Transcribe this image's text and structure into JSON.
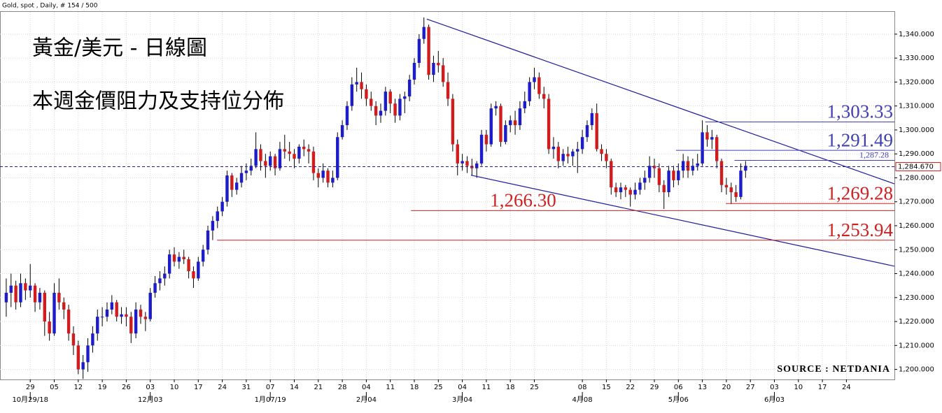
{
  "chart_data": {
    "type": "candlestick",
    "header": "Gold, spot , Daily, # 154 / 500",
    "title": "黃金/美元 - 日線圖",
    "subtitle": "本週金價阻力及支持位分佈",
    "source": "SOURCE : NETDANIA",
    "up_color": "#1c1cc8",
    "down_color": "#d01c1c",
    "grid": true,
    "xlim": [
      -1.3,
      185
    ],
    "ylim": [
      1195.8,
      1349.3
    ],
    "yticks": [
      {
        "value": 1200,
        "label": "1,200.000"
      },
      {
        "value": 1210,
        "label": "1,210.000"
      },
      {
        "value": 1220,
        "label": "1,220.000"
      },
      {
        "value": 1230,
        "label": "1,230.000"
      },
      {
        "value": 1240,
        "label": "1,240.000"
      },
      {
        "value": 1250,
        "label": "1,250.000"
      },
      {
        "value": 1260,
        "label": "1,260.000"
      },
      {
        "value": 1270,
        "label": "1,270.000"
      },
      {
        "value": 1280,
        "label": "1,280.000"
      },
      {
        "value": 1290,
        "label": "1,290.000"
      },
      {
        "value": 1300,
        "label": "1,300.000"
      },
      {
        "value": 1310,
        "label": "1,310.000"
      },
      {
        "value": 1320,
        "label": "1,320.000"
      },
      {
        "value": 1330,
        "label": "1,330.000"
      },
      {
        "value": 1340,
        "label": "1,340.000"
      }
    ],
    "xticks": [
      {
        "value": 5,
        "label": "29"
      },
      {
        "value": 10,
        "label": "05"
      },
      {
        "value": 15,
        "label": "12"
      },
      {
        "value": 20,
        "label": "19"
      },
      {
        "value": 25,
        "label": "26"
      },
      {
        "value": 30,
        "label": "03"
      },
      {
        "value": 35,
        "label": "10"
      },
      {
        "value": 40,
        "label": "17"
      },
      {
        "value": 45,
        "label": "24"
      },
      {
        "value": 50,
        "label": "31"
      },
      {
        "value": 55,
        "label": "07"
      },
      {
        "value": 60,
        "label": "14"
      },
      {
        "value": 65,
        "label": "21"
      },
      {
        "value": 70,
        "label": "28"
      },
      {
        "value": 75,
        "label": "04"
      },
      {
        "value": 80,
        "label": "11"
      },
      {
        "value": 85,
        "label": "18"
      },
      {
        "value": 90,
        "label": "25"
      },
      {
        "value": 95,
        "label": "04"
      },
      {
        "value": 100,
        "label": "11"
      },
      {
        "value": 105,
        "label": "18"
      },
      {
        "value": 110,
        "label": "25"
      },
      {
        "value": 120,
        "label": "08"
      },
      {
        "value": 125,
        "label": "15"
      },
      {
        "value": 130,
        "label": "22"
      },
      {
        "value": 135,
        "label": "29"
      },
      {
        "value": 140,
        "label": "06"
      },
      {
        "value": 145,
        "label": "13"
      },
      {
        "value": 150,
        "label": "20"
      },
      {
        "value": 155,
        "label": "27"
      },
      {
        "value": 160,
        "label": "03"
      },
      {
        "value": 165,
        "label": "10"
      },
      {
        "value": 170,
        "label": "17"
      },
      {
        "value": 175,
        "label": "24"
      }
    ],
    "xticks_major": [
      {
        "value": 5,
        "label": "10月29/18"
      },
      {
        "value": 30,
        "label": "12月03"
      },
      {
        "value": 55,
        "label": "1月07/19"
      },
      {
        "value": 75,
        "label": "2月04"
      },
      {
        "value": 95,
        "label": "3月04"
      },
      {
        "value": 120,
        "label": "4月08"
      },
      {
        "value": 140,
        "label": "5月06"
      },
      {
        "value": 160,
        "label": "6月03"
      }
    ],
    "current_price": {
      "value": 1284.67,
      "label": "1,284.670"
    },
    "trendlines": [
      {
        "color": "#1c1c9c",
        "from": [
          87.6,
          1346.3
        ],
        "to": [
          185,
          1277.5
        ]
      },
      {
        "color": "#1c1c9c",
        "from": [
          96.8,
          1281.1
        ],
        "to": [
          185,
          1243.1
        ]
      }
    ],
    "levels": [
      {
        "value": 1303.33,
        "label": "1,303.33",
        "color": "#4040b0",
        "from": 145.6,
        "size": "big"
      },
      {
        "value": 1291.49,
        "label": "1,291.49",
        "color": "#4040b0",
        "from": 139.5,
        "size": "big"
      },
      {
        "value": 1287.28,
        "label": "1,287.28",
        "color": "#4040b0",
        "from": 151.7,
        "size": "small"
      },
      {
        "value": 1269.28,
        "label": "1,269.28",
        "color": "#d02020",
        "from": 149.9,
        "size": "big"
      },
      {
        "value": 1266.3,
        "label": "1,266.30",
        "color": "#d02020",
        "from": 84.3,
        "size": "left"
      },
      {
        "value": 1253.94,
        "label": "1,253.94",
        "color": "#d02020",
        "from": 43.9,
        "size": "big"
      }
    ],
    "candles": [
      [
        1228,
        1238,
        1222,
        1232
      ],
      [
        1232,
        1240,
        1226,
        1235
      ],
      [
        1235,
        1237,
        1225,
        1228
      ],
      [
        1228,
        1240,
        1226,
        1236
      ],
      [
        1236,
        1238,
        1229,
        1233
      ],
      [
        1233,
        1244,
        1230,
        1235
      ],
      [
        1235,
        1236,
        1224,
        1228
      ],
      [
        1228,
        1234,
        1225,
        1232
      ],
      [
        1232,
        1233,
        1214,
        1220
      ],
      [
        1220,
        1224,
        1212,
        1215
      ],
      [
        1215,
        1236,
        1214,
        1232
      ],
      [
        1232,
        1238,
        1225,
        1228
      ],
      [
        1228,
        1230,
        1221,
        1225
      ],
      [
        1225,
        1227,
        1212,
        1215
      ],
      [
        1215,
        1218,
        1206,
        1210
      ],
      [
        1210,
        1212,
        1198,
        1200
      ],
      [
        1200,
        1206,
        1196,
        1203
      ],
      [
        1203,
        1213,
        1199,
        1210
      ],
      [
        1210,
        1218,
        1207,
        1215
      ],
      [
        1215,
        1225,
        1212,
        1222
      ],
      [
        1222,
        1226,
        1218,
        1222
      ],
      [
        1222,
        1228,
        1220,
        1225
      ],
      [
        1225,
        1231,
        1223,
        1228
      ],
      [
        1228,
        1229,
        1220,
        1222
      ],
      [
        1222,
        1226,
        1219,
        1223
      ],
      [
        1223,
        1226,
        1218,
        1222
      ],
      [
        1222,
        1224,
        1211,
        1215
      ],
      [
        1215,
        1228,
        1213,
        1225
      ],
      [
        1225,
        1227,
        1219,
        1222
      ],
      [
        1222,
        1224,
        1216,
        1221
      ],
      [
        1221,
        1234,
        1220,
        1232
      ],
      [
        1232,
        1239,
        1230,
        1236
      ],
      [
        1236,
        1241,
        1233,
        1238
      ],
      [
        1238,
        1243,
        1235,
        1240
      ],
      [
        1240,
        1250,
        1238,
        1248
      ],
      [
        1248,
        1251,
        1243,
        1245
      ],
      [
        1245,
        1249,
        1242,
        1247
      ],
      [
        1247,
        1250,
        1244,
        1246
      ],
      [
        1246,
        1247,
        1238,
        1241
      ],
      [
        1241,
        1243,
        1234,
        1238
      ],
      [
        1238,
        1247,
        1237,
        1245
      ],
      [
        1245,
        1252,
        1243,
        1250
      ],
      [
        1250,
        1260,
        1248,
        1258
      ],
      [
        1258,
        1264,
        1254,
        1262
      ],
      [
        1262,
        1268,
        1259,
        1266
      ],
      [
        1266,
        1272,
        1264,
        1270
      ],
      [
        1270,
        1283,
        1268,
        1281
      ],
      [
        1281,
        1282,
        1272,
        1275
      ],
      [
        1275,
        1280,
        1273,
        1278
      ],
      [
        1278,
        1285,
        1276,
        1282
      ],
      [
        1282,
        1286,
        1279,
        1283
      ],
      [
        1283,
        1288,
        1281,
        1285
      ],
      [
        1285,
        1299,
        1284,
        1292
      ],
      [
        1292,
        1294,
        1283,
        1287
      ],
      [
        1287,
        1290,
        1280,
        1285
      ],
      [
        1285,
        1291,
        1283,
        1289
      ],
      [
        1289,
        1290,
        1281,
        1284
      ],
      [
        1284,
        1295,
        1283,
        1292
      ],
      [
        1292,
        1298,
        1288,
        1291
      ],
      [
        1291,
        1295,
        1287,
        1290
      ],
      [
        1290,
        1292,
        1284,
        1288
      ],
      [
        1288,
        1294,
        1286,
        1293
      ],
      [
        1293,
        1296,
        1289,
        1292
      ],
      [
        1292,
        1294,
        1286,
        1291
      ],
      [
        1291,
        1293,
        1279,
        1282
      ],
      [
        1282,
        1284,
        1276,
        1280
      ],
      [
        1280,
        1286,
        1278,
        1283
      ],
      [
        1283,
        1284,
        1276,
        1278
      ],
      [
        1278,
        1283,
        1276,
        1280
      ],
      [
        1280,
        1299,
        1279,
        1297
      ],
      [
        1297,
        1304,
        1296,
        1302
      ],
      [
        1302,
        1312,
        1300,
        1310
      ],
      [
        1310,
        1322,
        1308,
        1319
      ],
      [
        1319,
        1326,
        1316,
        1320
      ],
      [
        1320,
        1324,
        1313,
        1317
      ],
      [
        1317,
        1319,
        1310,
        1313
      ],
      [
        1313,
        1316,
        1308,
        1310
      ],
      [
        1310,
        1312,
        1302,
        1306
      ],
      [
        1306,
        1311,
        1303,
        1308
      ],
      [
        1308,
        1318,
        1306,
        1316
      ],
      [
        1316,
        1317,
        1307,
        1311
      ],
      [
        1311,
        1313,
        1303,
        1306
      ],
      [
        1306,
        1315,
        1304,
        1313
      ],
      [
        1313,
        1316,
        1307,
        1314
      ],
      [
        1314,
        1323,
        1312,
        1321
      ],
      [
        1321,
        1330,
        1319,
        1328
      ],
      [
        1328,
        1340,
        1326,
        1338
      ],
      [
        1338,
        1347,
        1336,
        1343
      ],
      [
        1343,
        1344,
        1321,
        1323
      ],
      [
        1323,
        1331,
        1320,
        1328
      ],
      [
        1328,
        1333,
        1324,
        1327
      ],
      [
        1327,
        1330,
        1318,
        1320
      ],
      [
        1320,
        1324,
        1310,
        1313
      ],
      [
        1313,
        1315,
        1291,
        1294
      ],
      [
        1294,
        1296,
        1281,
        1286
      ],
      [
        1286,
        1290,
        1283,
        1287
      ],
      [
        1287,
        1289,
        1282,
        1285
      ],
      [
        1285,
        1288,
        1281,
        1284
      ],
      [
        1284,
        1287,
        1280,
        1286
      ],
      [
        1286,
        1300,
        1285,
        1298
      ],
      [
        1298,
        1300,
        1291,
        1294
      ],
      [
        1294,
        1311,
        1293,
        1309
      ],
      [
        1309,
        1312,
        1306,
        1310
      ],
      [
        1310,
        1311,
        1293,
        1295
      ],
      [
        1295,
        1304,
        1294,
        1302
      ],
      [
        1302,
        1306,
        1299,
        1304
      ],
      [
        1304,
        1308,
        1298,
        1302
      ],
      [
        1302,
        1312,
        1300,
        1309
      ],
      [
        1309,
        1316,
        1307,
        1312
      ],
      [
        1312,
        1322,
        1310,
        1320
      ],
      [
        1320,
        1326,
        1317,
        1322
      ],
      [
        1322,
        1324,
        1313,
        1315
      ],
      [
        1315,
        1318,
        1309,
        1313
      ],
      [
        1313,
        1315,
        1290,
        1292
      ],
      [
        1292,
        1297,
        1288,
        1293
      ],
      [
        1293,
        1295,
        1284,
        1287
      ],
      [
        1287,
        1292,
        1285,
        1290
      ],
      [
        1290,
        1293,
        1286,
        1289
      ],
      [
        1289,
        1292,
        1285,
        1291
      ],
      [
        1291,
        1295,
        1282,
        1292
      ],
      [
        1292,
        1300,
        1290,
        1297
      ],
      [
        1297,
        1304,
        1295,
        1302
      ],
      [
        1302,
        1309,
        1300,
        1307
      ],
      [
        1307,
        1311,
        1291,
        1292
      ],
      [
        1292,
        1294,
        1287,
        1290
      ],
      [
        1290,
        1292,
        1284,
        1287
      ],
      [
        1287,
        1288,
        1273,
        1276
      ],
      [
        1276,
        1278,
        1272,
        1274
      ],
      [
        1274,
        1278,
        1271,
        1276
      ],
      [
        1276,
        1277,
        1272,
        1275
      ],
      [
        1275,
        1276,
        1268,
        1273
      ],
      [
        1273,
        1278,
        1271,
        1275
      ],
      [
        1275,
        1280,
        1273,
        1278
      ],
      [
        1278,
        1283,
        1275,
        1280
      ],
      [
        1280,
        1289,
        1278,
        1285
      ],
      [
        1285,
        1288,
        1280,
        1284
      ],
      [
        1284,
        1286,
        1274,
        1277
      ],
      [
        1277,
        1279,
        1267,
        1274
      ],
      [
        1274,
        1285,
        1272,
        1283
      ],
      [
        1283,
        1285,
        1276,
        1279
      ],
      [
        1279,
        1286,
        1277,
        1283
      ],
      [
        1283,
        1290,
        1280,
        1287
      ],
      [
        1287,
        1289,
        1280,
        1283
      ],
      [
        1283,
        1288,
        1281,
        1285
      ],
      [
        1285,
        1290,
        1283,
        1286
      ],
      [
        1286,
        1304,
        1285,
        1299
      ],
      [
        1299,
        1302,
        1293,
        1296
      ],
      [
        1296,
        1300,
        1292,
        1297
      ],
      [
        1297,
        1298,
        1284,
        1287
      ],
      [
        1287,
        1288,
        1274,
        1277
      ],
      [
        1277,
        1280,
        1273,
        1276
      ],
      [
        1276,
        1278,
        1269,
        1274
      ],
      [
        1274,
        1277,
        1270,
        1272
      ],
      [
        1272,
        1286,
        1271,
        1283
      ],
      [
        1283,
        1287,
        1280,
        1285
      ]
    ]
  }
}
